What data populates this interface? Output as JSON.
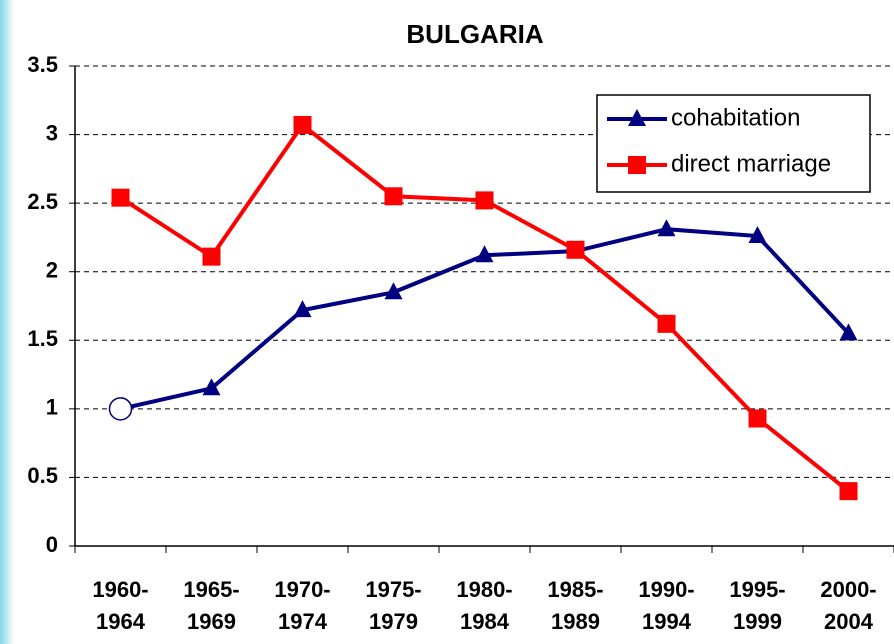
{
  "chart_data": {
    "type": "line",
    "title": "BULGARIA",
    "categories": [
      "1960-1964",
      "1965-1969",
      "1970-1974",
      "1975-1979",
      "1980-1984",
      "1985-1989",
      "1990-1994",
      "1995-1999",
      "2000-2004"
    ],
    "series": [
      {
        "name": "cohabitation",
        "color": "#000080",
        "markers": [
          "open-circle",
          "triangle",
          "triangle",
          "triangle",
          "triangle",
          "triangle",
          "triangle",
          "triangle",
          "triangle"
        ],
        "values": [
          1.0,
          1.15,
          1.72,
          1.85,
          2.12,
          2.15,
          2.31,
          2.26,
          1.55
        ]
      },
      {
        "name": "direct marriage",
        "color": "#ff0000",
        "markers": [
          "square",
          "square",
          "square",
          "square",
          "square",
          "square",
          "square",
          "square",
          "square"
        ],
        "values": [
          2.54,
          2.11,
          3.07,
          2.55,
          2.52,
          2.16,
          1.62,
          0.93,
          0.4
        ]
      }
    ],
    "ylim": [
      0,
      3.5
    ],
    "yticks": [
      0,
      0.5,
      1,
      1.5,
      2,
      2.5,
      3,
      3.5
    ],
    "grid": true,
    "legend": "upper right"
  }
}
